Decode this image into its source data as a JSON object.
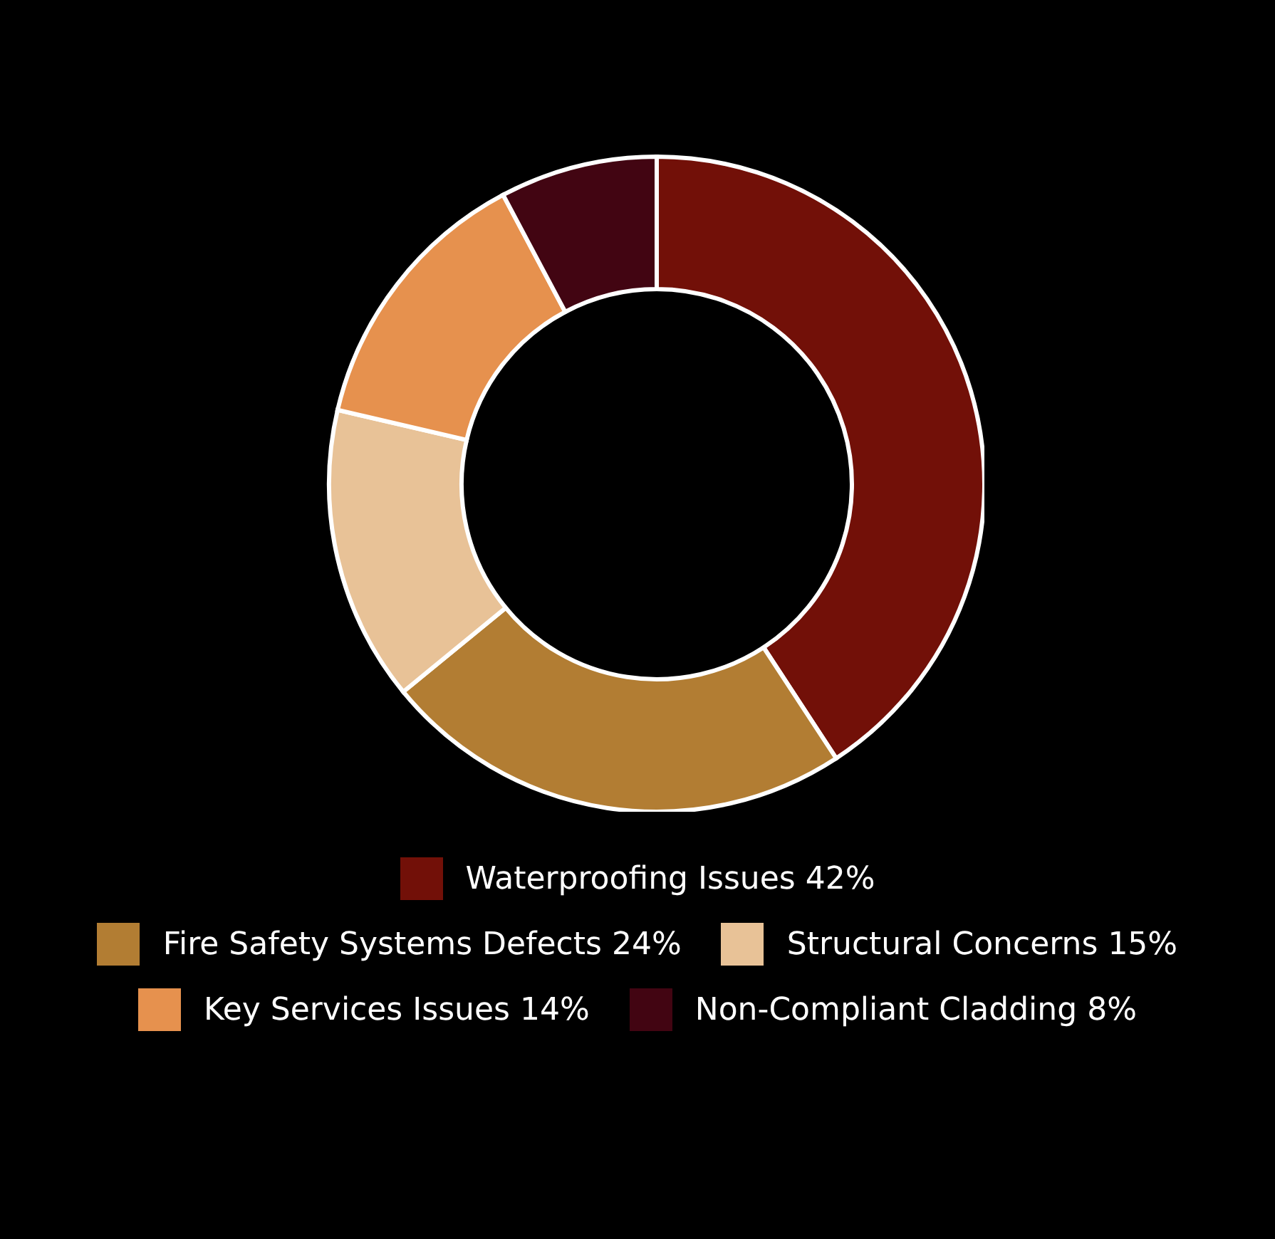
{
  "chart_data": {
    "type": "donut",
    "categories": [
      "Waterproofing Issues",
      "Fire Safety Systems Defects",
      "Structural Concerns",
      "Key Services Issues",
      "Non-Compliant Cladding"
    ],
    "values": [
      42,
      24,
      15,
      14,
      8
    ],
    "value_labels": [
      "42%",
      "24%",
      "15%",
      "14%",
      "8%"
    ],
    "colors": [
      "#721008",
      "#b27d33",
      "#e8c297",
      "#e6914e",
      "#420512"
    ],
    "legend": "bottom"
  }
}
